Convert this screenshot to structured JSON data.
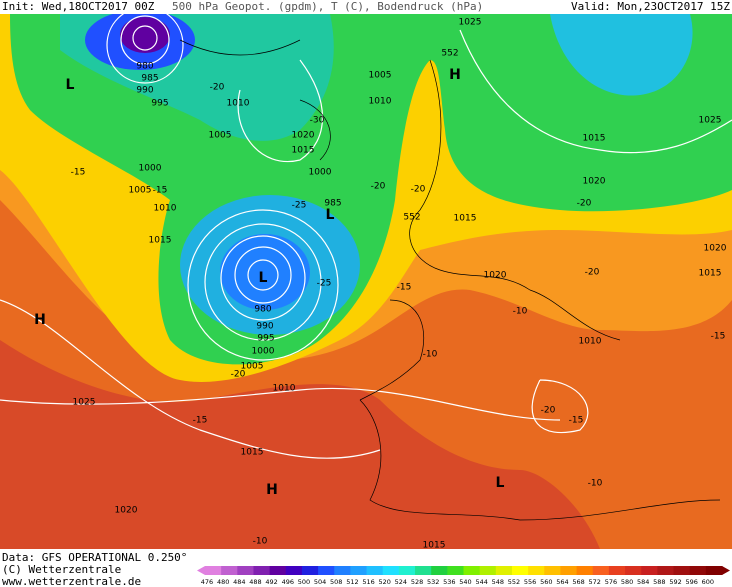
{
  "header": {
    "init": "Init: Wed,18OCT2017 00Z",
    "product": "500 hPa Geopot. (gpdm), T (C), Bodendruck (hPa)",
    "valid": "Valid: Mon,23OCT2017 15Z"
  },
  "footer": {
    "data": "Data: GFS OPERATIONAL 0.250°",
    "copyright": "(C) Wetterzentrale",
    "url": "www.wetterzentrale.de"
  },
  "labels": [
    "L",
    "L",
    "L",
    "H",
    "H",
    "H",
    "L",
    "1025",
    "552",
    "1005",
    "1010",
    "1010",
    "1005",
    "1020",
    "1015",
    "1000",
    "985",
    "1015",
    "1020",
    "1015",
    "1010",
    "1005",
    "1000",
    "995",
    "990",
    "985",
    "980",
    "1015",
    "1020",
    "1025",
    "1020",
    "1015",
    "1010",
    "980",
    "990",
    "995",
    "1000",
    "1005",
    "1010",
    "1025",
    "1015",
    "1020",
    "1015",
    "552",
    "-20",
    "-30",
    "-20",
    "-20",
    "-25",
    "-15",
    "-15",
    "-25",
    "-15",
    "-20",
    "-10",
    "-10",
    "-15",
    "-20",
    "-15",
    "-10",
    "-10",
    "-15",
    "-20",
    "-20"
  ],
  "scale": {
    "labels": [
      "476",
      "480",
      "484",
      "488",
      "492",
      "496",
      "500",
      "504",
      "508",
      "512",
      "516",
      "520",
      "524",
      "528",
      "532",
      "536",
      "540",
      "544",
      "548",
      "552",
      "556",
      "560",
      "564",
      "568",
      "572",
      "576",
      "580",
      "584",
      "588",
      "592",
      "596",
      "600"
    ],
    "colors": [
      "#e080e0",
      "#c060d0",
      "#a040c0",
      "#8020b0",
      "#6000a0",
      "#4000c0",
      "#2020e0",
      "#2050ff",
      "#2080ff",
      "#20a0ff",
      "#20c0ff",
      "#20e0ff",
      "#20f0d0",
      "#20e090",
      "#20d040",
      "#40e020",
      "#80f000",
      "#b0f000",
      "#e0f000",
      "#ffff00",
      "#ffe000",
      "#ffc000",
      "#ffa000",
      "#ff8000",
      "#f86020",
      "#e84020",
      "#d83020",
      "#c82020",
      "#b01818",
      "#a01010",
      "#900808",
      "#800000"
    ]
  }
}
